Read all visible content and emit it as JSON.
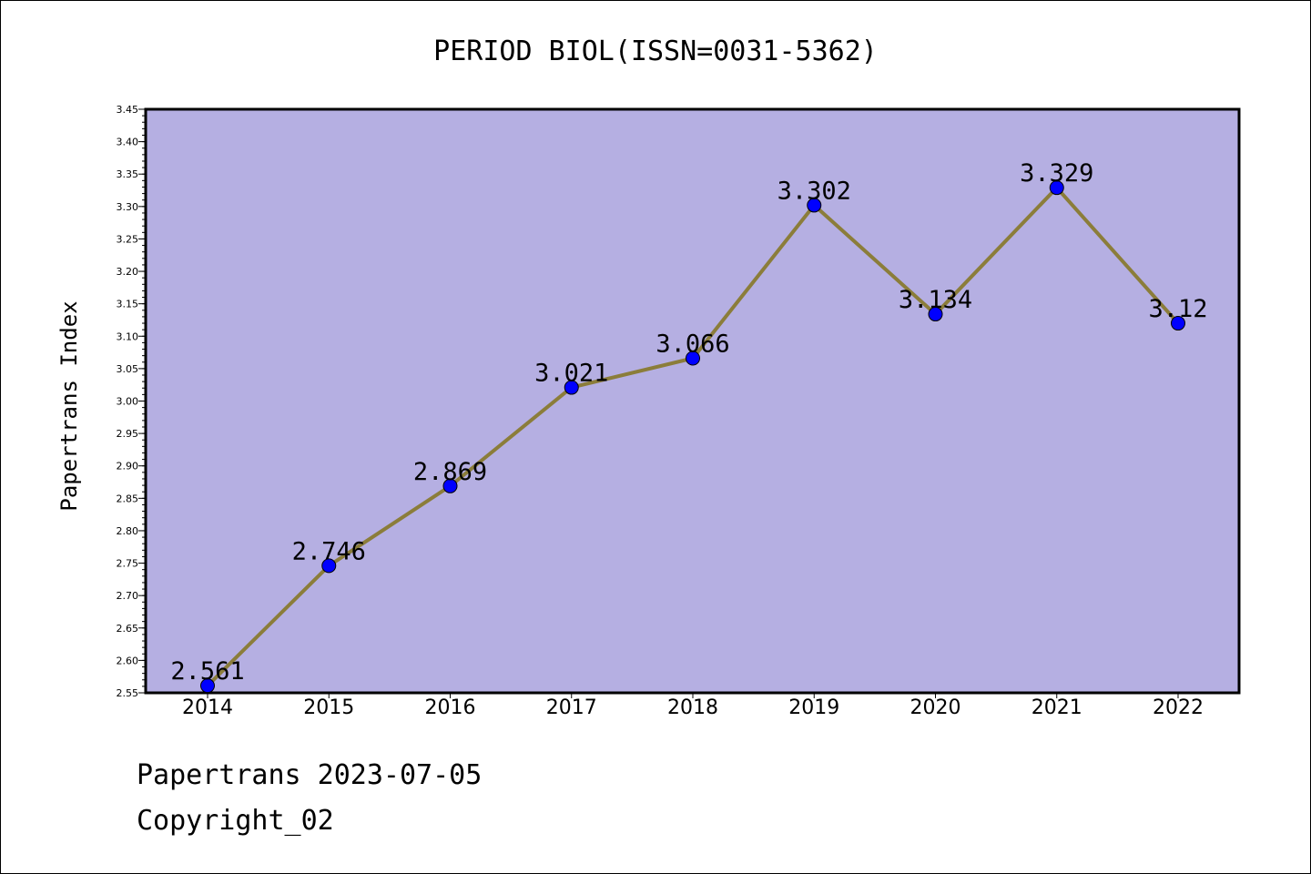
{
  "chart_data": {
    "type": "line",
    "title": "PERIOD BIOL(ISSN=0031-5362)",
    "xlabel": "",
    "ylabel": "Papertrans Index",
    "categories": [
      "2014",
      "2015",
      "2016",
      "2017",
      "2018",
      "2019",
      "2020",
      "2021",
      "2022"
    ],
    "values": [
      2.561,
      2.746,
      2.869,
      3.021,
      3.066,
      3.302,
      3.134,
      3.329,
      3.12
    ],
    "data_labels": [
      "2.561",
      "2.746",
      "2.869",
      "3.021",
      "3.066",
      "3.302",
      "3.134",
      "3.329",
      "3.12"
    ],
    "ylim": [
      2.55,
      3.45
    ],
    "yticks": [
      "2.55",
      "2.60",
      "2.65",
      "2.70",
      "2.75",
      "2.80",
      "2.85",
      "2.90",
      "2.95",
      "3.00",
      "3.05",
      "3.10",
      "3.15",
      "3.20",
      "3.25",
      "3.30",
      "3.35",
      "3.40",
      "3.45"
    ],
    "grid": false,
    "colors": {
      "plot_background": "#b5afe2",
      "line": "#8b7d3a",
      "marker": "#0000ff",
      "axes": "#000000"
    }
  },
  "footer": {
    "line1": "Papertrans 2023-07-05",
    "line2": "Copyright_02"
  }
}
